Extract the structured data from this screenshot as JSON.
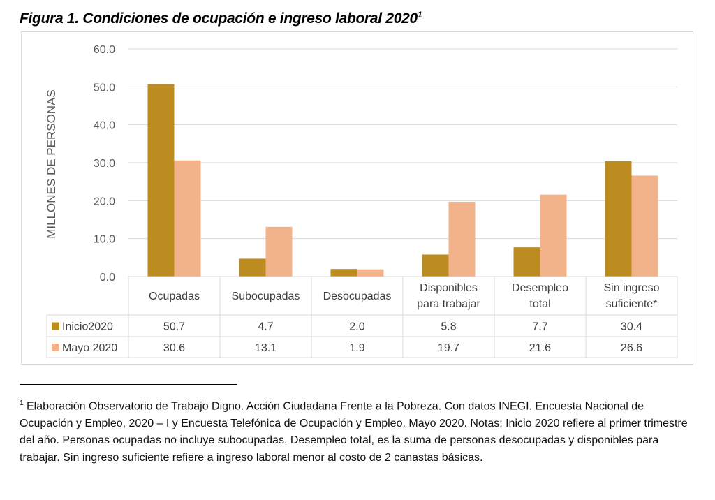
{
  "title": "Figura 1. Condiciones de ocupación e ingreso laboral 2020",
  "title_superscript": "1",
  "chart_data": {
    "type": "bar",
    "title": "Figura 1. Condiciones de ocupación e ingreso laboral 2020",
    "xlabel": "",
    "ylabel": "MILLONES DE PERSONAS",
    "ylim": [
      0,
      60
    ],
    "yticks": [
      "0.0",
      "10.0",
      "20.0",
      "30.0",
      "40.0",
      "50.0",
      "60.0"
    ],
    "grid": true,
    "legend": "data-table",
    "categories": [
      [
        "Ocupadas"
      ],
      [
        "Subocupadas"
      ],
      [
        "Desocupadas"
      ],
      [
        "Disponibles",
        "para trabajar"
      ],
      [
        "Desempleo",
        "total"
      ],
      [
        "Sin ingreso",
        "suficiente*"
      ]
    ],
    "series": [
      {
        "name": "Inicio2020",
        "color": "#bc8c21",
        "values": [
          50.7,
          4.7,
          2.0,
          5.8,
          7.7,
          30.4
        ],
        "labels": [
          "50.7",
          "4.7",
          "2.0",
          "5.8",
          "7.7",
          "30.4"
        ]
      },
      {
        "name": "Mayo 2020",
        "color": "#f2b38a",
        "values": [
          30.6,
          13.1,
          1.9,
          19.7,
          21.6,
          26.6
        ],
        "labels": [
          "30.6",
          "13.1",
          "1.9",
          "19.7",
          "21.6",
          "26.6"
        ]
      }
    ]
  },
  "footnote": {
    "marker": "1",
    "text": " Elaboración Observatorio de Trabajo Digno. Acción Ciudadana Frente a la Pobreza. Con datos INEGI. Encuesta Nacional de Ocupación y Empleo, 2020 – I y Encuesta Telefónica de Ocupación y Empleo. Mayo 2020.  Notas: Inicio 2020 refiere al primer trimestre del año. Personas ocupadas no incluye subocupadas. Desempleo total, es la suma de personas desocupadas y disponibles para trabajar. Sin ingreso suficiente refiere a ingreso laboral menor al costo de 2 canastas básicas."
  }
}
